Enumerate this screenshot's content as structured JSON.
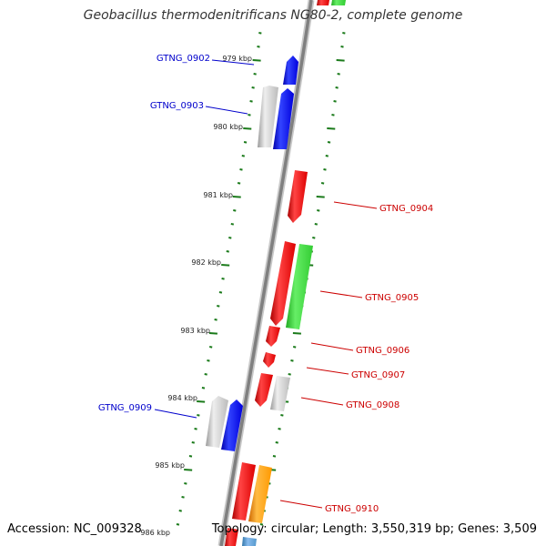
{
  "title": "Geobacillus thermodenitrificans NG80-2, complete genome",
  "footer": {
    "accession_label": "Accession:",
    "accession": "NC_009328",
    "topology_label": "Topology:",
    "topology": "circular",
    "length_label": "Length:",
    "length": "3,550,319 bp",
    "genes_label": "Genes:",
    "genes": "3,509"
  },
  "colors": {
    "backbone": "#8a8a8a",
    "tick": "#1a7a1a",
    "forward_gene_label": "#cc0000",
    "reverse_gene_label": "#0000cc",
    "red_gene": "#ee1111",
    "blue_gene": "#1111ee",
    "green_gene": "#33cc33",
    "gray_gene": "#bbbbbb",
    "orange_gene": "#ff9900"
  },
  "kbp_ticks": [
    {
      "kbp": 979,
      "label": "979 kbp"
    },
    {
      "kbp": 980,
      "label": "980 kbp"
    },
    {
      "kbp": 981,
      "label": "981 kbp"
    },
    {
      "kbp": 982,
      "label": "982 kbp"
    },
    {
      "kbp": 983,
      "label": "983 kbp"
    },
    {
      "kbp": 984,
      "label": "984 kbp"
    },
    {
      "kbp": 985,
      "label": "985 kbp"
    },
    {
      "kbp": 986,
      "label": "986 kbp"
    }
  ],
  "gene_labels": [
    {
      "name": "GTNG_0902",
      "strand": "reverse"
    },
    {
      "name": "GTNG_0903",
      "strand": "reverse"
    },
    {
      "name": "GTNG_0904",
      "strand": "forward"
    },
    {
      "name": "GTNG_0905",
      "strand": "forward"
    },
    {
      "name": "GTNG_0906",
      "strand": "forward"
    },
    {
      "name": "GTNG_0907",
      "strand": "forward"
    },
    {
      "name": "GTNG_0908",
      "strand": "forward"
    },
    {
      "name": "GTNG_0909",
      "strand": "reverse"
    },
    {
      "name": "GTNG_0910",
      "strand": "forward"
    }
  ]
}
